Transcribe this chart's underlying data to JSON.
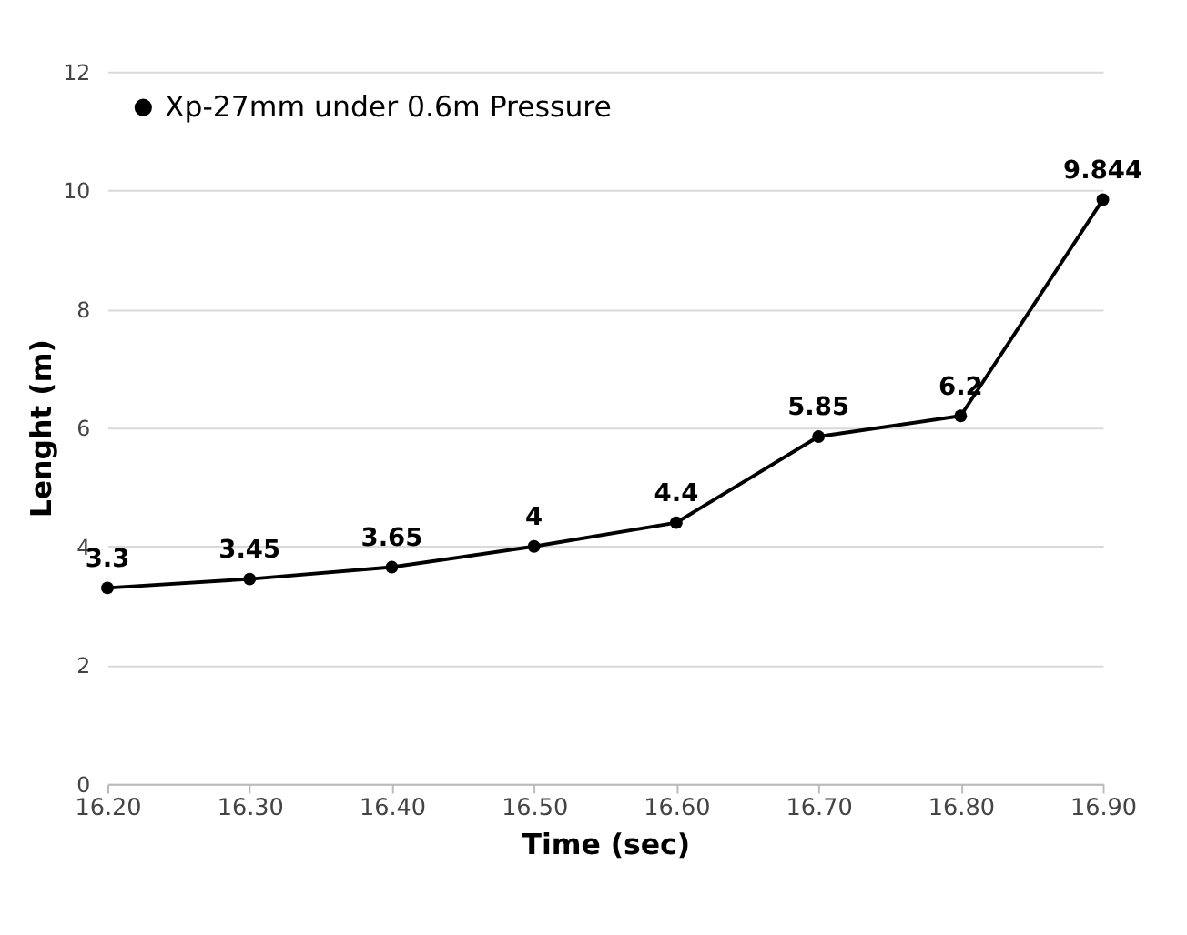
{
  "chart_data": {
    "type": "line",
    "xlabel": "Time (sec)",
    "ylabel": "Lenght (m)",
    "categories": [
      "16.20",
      "16.30",
      "16.40",
      "16.50",
      "16.60",
      "16.70",
      "16.80",
      "16.90"
    ],
    "series": [
      {
        "name": "Xp-27mm under 0.6m Pressure",
        "color": "#000000",
        "values": [
          3.3,
          3.45,
          3.65,
          4,
          4.4,
          5.85,
          6.2,
          9.844
        ]
      }
    ],
    "ylim": [
      0,
      12
    ],
    "yticks": [
      0,
      2,
      4,
      6,
      8,
      10,
      12
    ],
    "grid": "y",
    "legend": "top left",
    "marker": "circle",
    "line_style": "solid",
    "data_labels": true
  }
}
